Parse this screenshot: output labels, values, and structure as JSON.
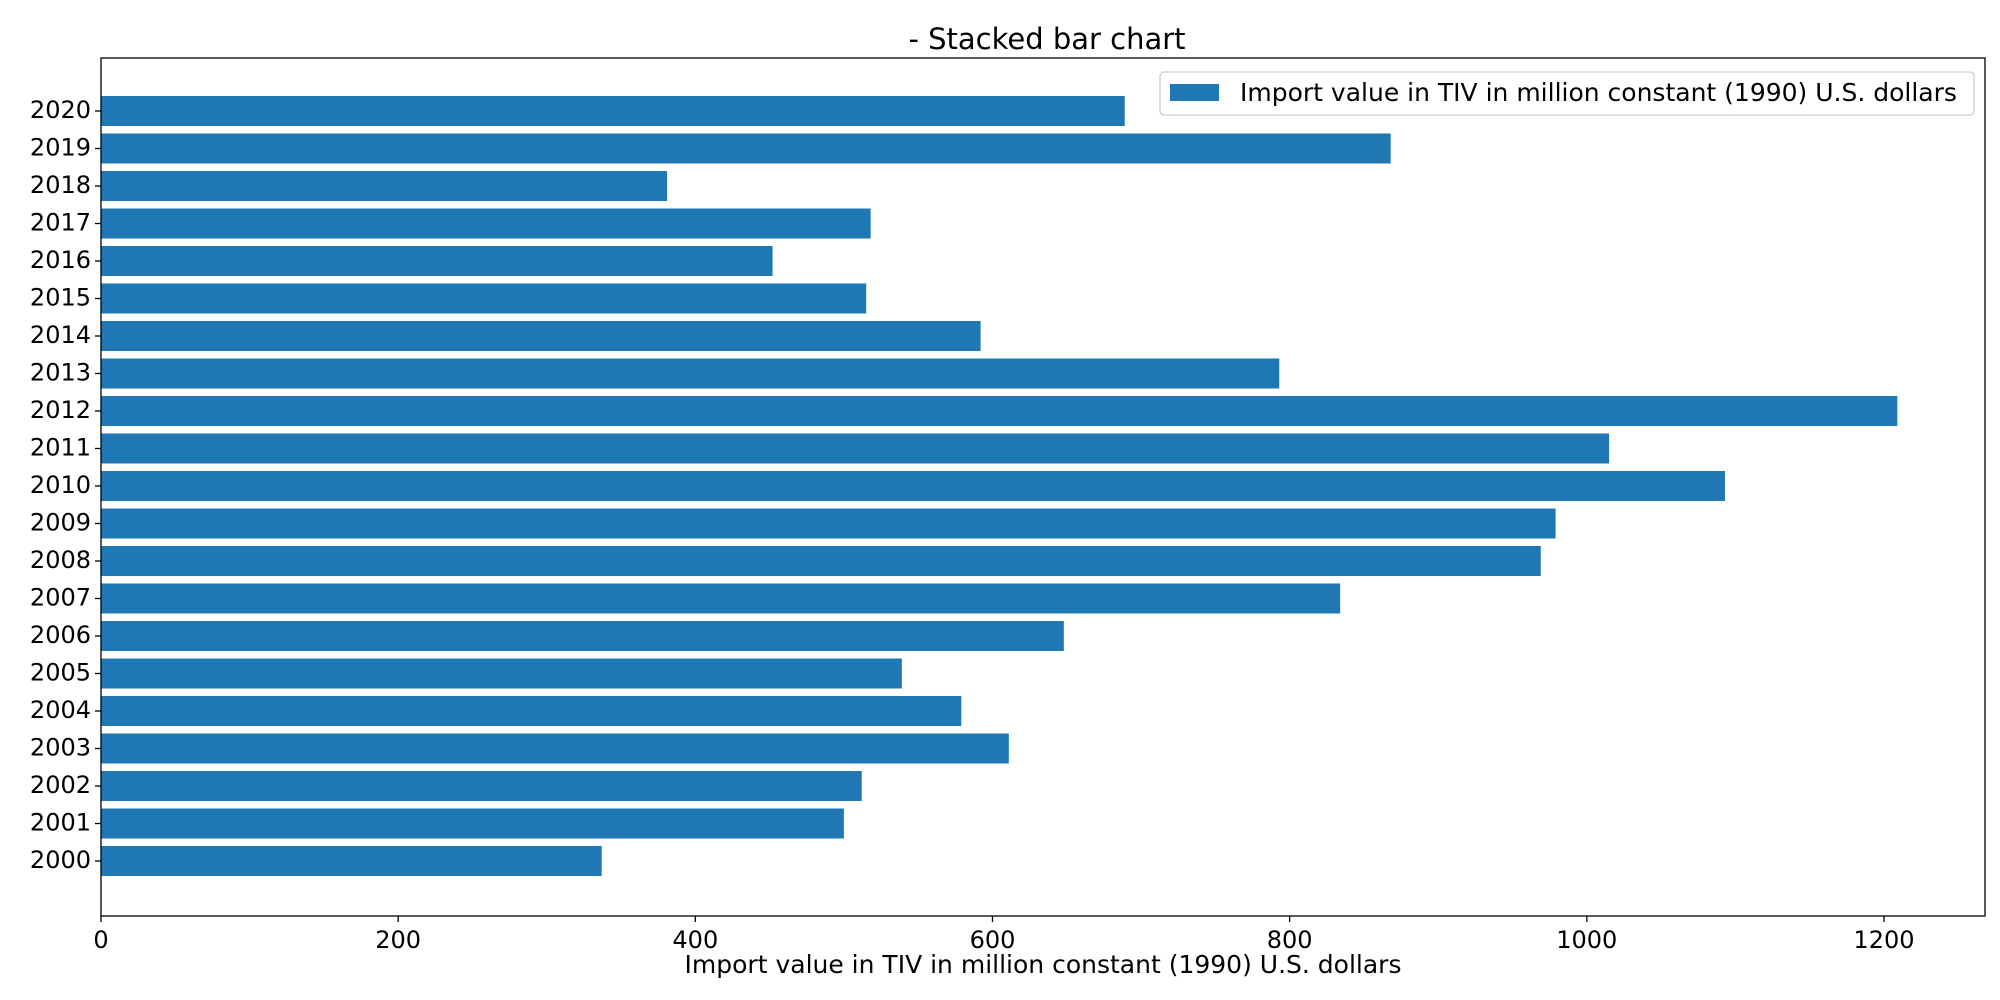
{
  "chart_data": {
    "type": "bar",
    "orientation": "horizontal",
    "title": "- Stacked bar chart",
    "xlabel": "Import value in TIV in million constant (1990) U.S. dollars",
    "ylabel": "",
    "xlim": [
      0,
      1268
    ],
    "x_ticks": [
      0,
      200,
      400,
      600,
      800,
      1000,
      1200
    ],
    "grid": false,
    "legend_position": "top-right",
    "categories": [
      "2000",
      "2001",
      "2002",
      "2003",
      "2004",
      "2005",
      "2006",
      "2007",
      "2008",
      "2009",
      "2010",
      "2011",
      "2012",
      "2013",
      "2014",
      "2015",
      "2016",
      "2017",
      "2018",
      "2019",
      "2020"
    ],
    "series": [
      {
        "name": "Import value in TIV in million constant (1990) U.S. dollars",
        "color": "#1f77b4",
        "values": [
          337,
          500,
          512,
          611,
          579,
          539,
          648,
          834,
          969,
          979,
          1093,
          1015,
          1209,
          793,
          592,
          515,
          452,
          518,
          381,
          868,
          689
        ]
      }
    ]
  }
}
